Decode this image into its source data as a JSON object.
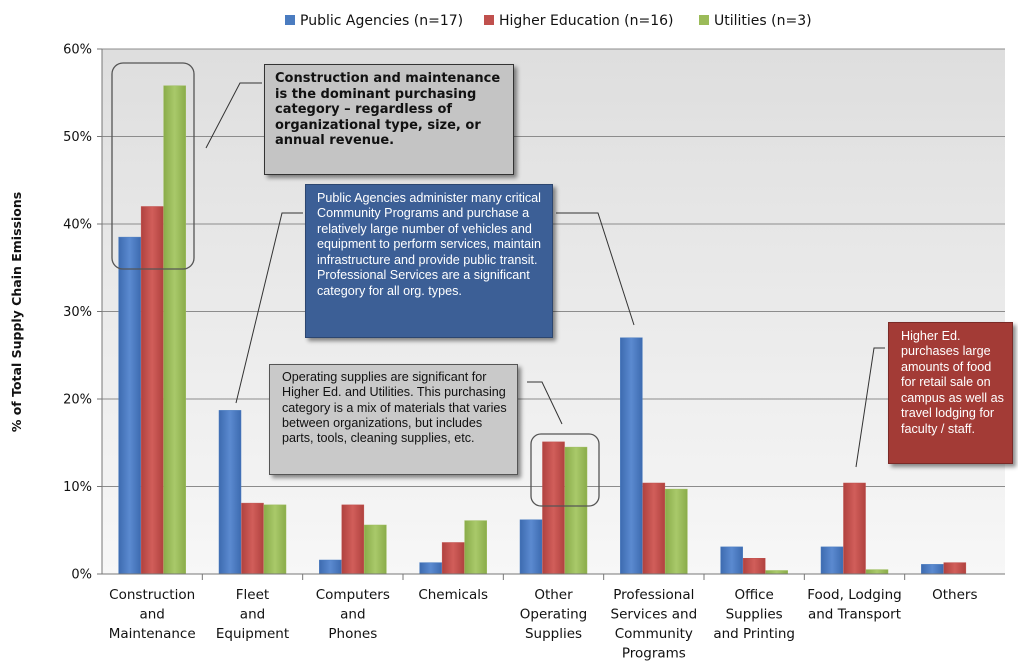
{
  "chart_data": {
    "type": "bar",
    "title": "",
    "xlabel": "",
    "ylabel": "% of Total Supply Chain Emissions",
    "ylim": [
      0,
      60
    ],
    "yticks": [
      "0%",
      "10%",
      "20%",
      "30%",
      "40%",
      "50%",
      "60%"
    ],
    "grid": true,
    "legend_position": "top",
    "categories": [
      "Construction and Maintenance",
      "Fleet and Equipment",
      "Computers and Phones",
      "Chemicals",
      "Other Operating Supplies",
      "Professional Services and Community Programs",
      "Office Supplies and Printing",
      "Food, Lodging and Transport",
      "Others"
    ],
    "category_lines": [
      [
        "Construction",
        "and",
        "Maintenance"
      ],
      [
        "Fleet",
        "and",
        "Equipment"
      ],
      [
        "Computers",
        "and",
        "Phones"
      ],
      [
        "Chemicals"
      ],
      [
        "Other",
        "Operating",
        "Supplies"
      ],
      [
        "Professional",
        "Services and",
        "Community",
        "Programs"
      ],
      [
        "Office",
        "Supplies",
        "and Printing"
      ],
      [
        "Food, Lodging",
        "and Transport"
      ],
      [
        "Others"
      ]
    ],
    "series": [
      {
        "name": "Public Agencies (n=17)",
        "color": "#4a7cc0",
        "values": [
          38.5,
          18.7,
          1.6,
          1.3,
          6.2,
          27.0,
          3.1,
          3.1,
          1.1
        ]
      },
      {
        "name": "Higher Education (n=16)",
        "color": "#c0504d",
        "values": [
          42.0,
          8.1,
          7.9,
          3.6,
          15.1,
          10.4,
          1.8,
          10.4,
          1.3
        ]
      },
      {
        "name": "Utilities (n=3)",
        "color": "#9bbb59",
        "values": [
          55.8,
          7.9,
          5.6,
          6.1,
          14.5,
          9.7,
          0.4,
          0.5,
          0.0
        ]
      }
    ],
    "annotations": {
      "construction": "Construction and maintenance is the dominant purchasing category – regardless of organizational type, size, or annual revenue.",
      "public_agencies": "Public Agencies administer many critical Community Programs and purchase a relatively large number of vehicles and equipment to perform services, maintain infrastructure and provide public transit.  Professional Services are a significant category for all org. types.",
      "operating_supplies": "Operating supplies are significant for Higher Ed. and Utilities.  This purchasing category is a mix of materials that varies between organizations, but includes parts, tools, cleaning supplies, etc.",
      "higher_ed": "Higher Ed. purchases large amounts of food for retail sale on campus as well as travel lodging for faculty / staff."
    }
  }
}
